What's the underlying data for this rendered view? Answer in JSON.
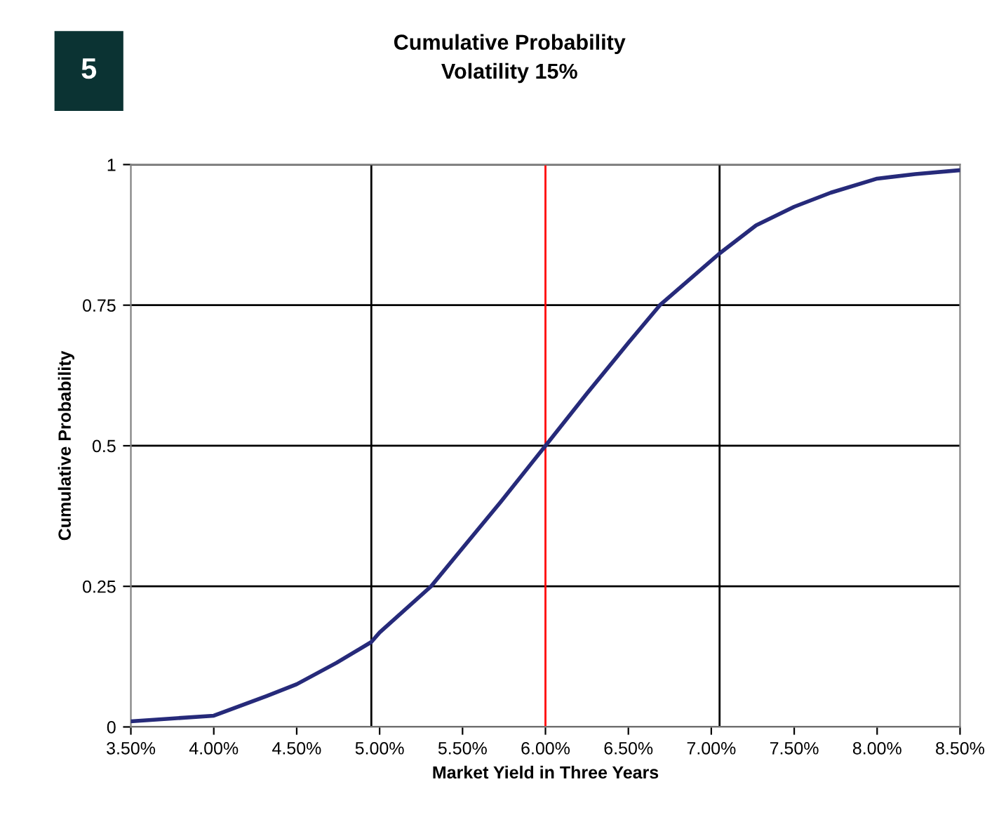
{
  "chart_data": {
    "type": "line",
    "title": "Cumulative Probability",
    "subtitle": "Volatility 15%",
    "xlabel": "Market Yield in Three Years",
    "ylabel": "Cumulative Probability",
    "annotations": [
      "5"
    ],
    "x": [
      3.5,
      4.0,
      4.32,
      4.5,
      4.74,
      4.95,
      5.0,
      5.31,
      5.5,
      5.73,
      6.0,
      6.25,
      6.5,
      6.69,
      7.05,
      7.27,
      7.5,
      7.72,
      8.0,
      8.23,
      8.5
    ],
    "series": [
      {
        "color": "#262a7a",
        "values": [
          0.01,
          0.02,
          0.055,
          0.076,
          0.114,
          0.151,
          0.168,
          0.25,
          0.318,
          0.4,
          0.5,
          0.593,
          0.683,
          0.75,
          0.842,
          0.892,
          0.925,
          0.95,
          0.975,
          0.983,
          0.99
        ]
      }
    ],
    "xlim": [
      3.5,
      8.5
    ],
    "xticks": [
      {
        "value": 3.5,
        "label": "3.50%"
      },
      {
        "value": 4.0,
        "label": "4.00%"
      },
      {
        "value": 4.5,
        "label": "4.50%"
      },
      {
        "value": 5.0,
        "label": "5.00%"
      },
      {
        "value": 5.5,
        "label": "5.50%"
      },
      {
        "value": 6.0,
        "label": "6.00%"
      },
      {
        "value": 6.5,
        "label": "6.50%"
      },
      {
        "value": 7.0,
        "label": "7.00%"
      },
      {
        "value": 7.5,
        "label": "7.50%"
      },
      {
        "value": 8.0,
        "label": "8.00%"
      },
      {
        "value": 8.5,
        "label": "8.50%"
      }
    ],
    "ylim": [
      0,
      1
    ],
    "yticks": [
      0,
      0.25,
      0.5,
      0.75,
      1
    ],
    "grid": "y",
    "legend": false,
    "marker": "none",
    "line_style": "solid",
    "ref_lines": [
      {
        "axis": "x",
        "value": 4.95,
        "color": "#000000"
      },
      {
        "axis": "x",
        "value": 6.0,
        "color": "#ff0000"
      },
      {
        "axis": "x",
        "value": 7.05,
        "color": "#000000"
      }
    ]
  }
}
